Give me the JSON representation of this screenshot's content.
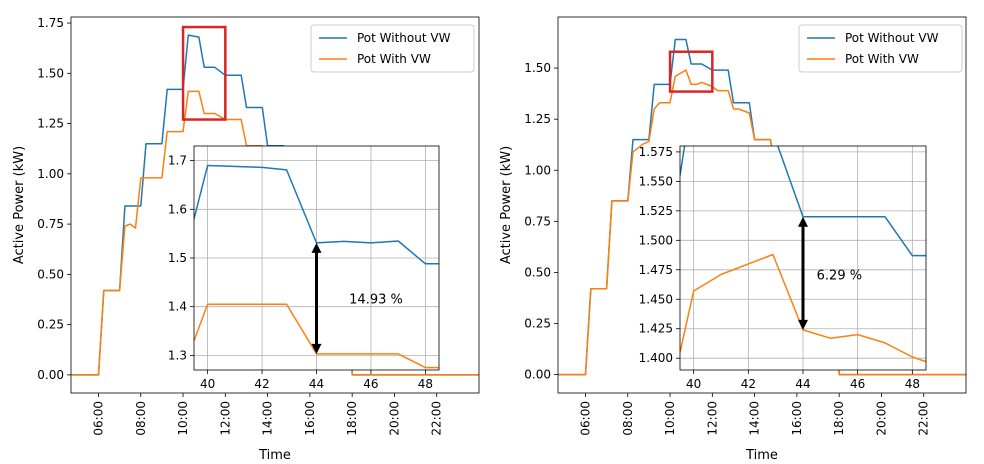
{
  "colors": {
    "without": "#1f77b4",
    "with": "#ff7f0e",
    "zoom_box": "#d62728",
    "arrow": "#000000",
    "grid": "#b0b0b0"
  },
  "chart_data": [
    {
      "type": "line",
      "xlabel": "Time",
      "ylabel": "Active Power (kW)",
      "x_ticks": [
        "06:00",
        "08:00",
        "10:00",
        "12:00",
        "14:00",
        "16:00",
        "18:00",
        "20:00",
        "22:00"
      ],
      "x_tick_hours": [
        6,
        8,
        10,
        12,
        14,
        16,
        18,
        20,
        22
      ],
      "xlim": [
        4.7,
        24.0
      ],
      "ylim": [
        -0.09,
        1.78
      ],
      "y_ticks": [
        "0.00",
        "0.25",
        "0.50",
        "0.75",
        "1.00",
        "1.25",
        "1.50",
        "1.75"
      ],
      "y_tick_values": [
        0,
        0.25,
        0.5,
        0.75,
        1.0,
        1.25,
        1.5,
        1.75
      ],
      "legend": {
        "placement": "top-right",
        "entries": [
          "Pot Without VW",
          "Pot With VW"
        ]
      },
      "series": [
        {
          "name": "Pot Without VW",
          "color": "#1f77b4",
          "x": [
            4.7,
            6.0,
            6.25,
            7.0,
            7.25,
            8.0,
            8.25,
            9.0,
            9.25,
            10.0,
            10.25,
            10.75,
            11.0,
            11.5,
            12.0,
            12.25,
            12.75,
            13.0,
            13.75,
            14.0,
            14.75,
            15.0,
            15.75,
            16.0,
            17.75,
            18.0,
            24.0
          ],
          "y": [
            0,
            0,
            0.42,
            0.42,
            0.84,
            0.84,
            1.15,
            1.15,
            1.42,
            1.42,
            1.69,
            1.68,
            1.53,
            1.53,
            1.49,
            1.49,
            1.49,
            1.33,
            1.33,
            1.14,
            1.14,
            0.98,
            0.98,
            0.7,
            0.7,
            0,
            0
          ]
        },
        {
          "name": "Pot With VW",
          "color": "#ff7f0e",
          "x": [
            4.7,
            6.0,
            6.25,
            7.0,
            7.25,
            7.5,
            7.75,
            8.0,
            8.25,
            9.0,
            9.25,
            10.0,
            10.25,
            10.75,
            11.0,
            11.5,
            12.0,
            12.25,
            12.75,
            13.0,
            13.75,
            14.0,
            14.75,
            15.0,
            15.75,
            16.0,
            17.75,
            18.0,
            24.0
          ],
          "y": [
            0,
            0,
            0.42,
            0.42,
            0.74,
            0.75,
            0.73,
            0.98,
            0.98,
            0.98,
            1.21,
            1.21,
            1.41,
            1.41,
            1.3,
            1.3,
            1.27,
            1.27,
            1.27,
            1.14,
            1.14,
            1.0,
            1.0,
            0.86,
            0.86,
            0.7,
            0.7,
            0,
            0
          ]
        }
      ],
      "zoom_region": {
        "x": [
          10.0,
          12.0
        ],
        "y": [
          1.27,
          1.73
        ]
      },
      "inset": {
        "xlim": [
          39.5,
          48.5
        ],
        "ylim": [
          1.27,
          1.73
        ],
        "x_ticks": [
          "40",
          "42",
          "44",
          "46",
          "48"
        ],
        "x_tick_values": [
          40,
          42,
          44,
          46,
          48
        ],
        "y_ticks": [
          "1.3",
          "1.4",
          "1.5",
          "1.6",
          "1.7"
        ],
        "y_tick_values": [
          1.3,
          1.4,
          1.5,
          1.6,
          1.7
        ],
        "grid": true,
        "series": [
          {
            "color": "#1f77b4",
            "x": [
              39.5,
              40.0,
              42.0,
              42.9,
              44.0,
              45.0,
              46.0,
              47.0,
              48.0,
              48.5
            ],
            "y": [
              1.58,
              1.69,
              1.686,
              1.681,
              1.531,
              1.534,
              1.531,
              1.535,
              1.488,
              1.488
            ]
          },
          {
            "color": "#ff7f0e",
            "x": [
              39.5,
              40.0,
              42.0,
              42.9,
              44.0,
              45.0,
              46.0,
              47.0,
              48.0,
              48.5
            ],
            "y": [
              1.33,
              1.405,
              1.405,
              1.405,
              1.303,
              1.303,
              1.303,
              1.303,
              1.275,
              1.275
            ]
          }
        ],
        "arrow": {
          "x": 44,
          "y_from": 1.303,
          "y_to": 1.531
        },
        "annotation": "14.93 %",
        "annotation_at": [
          45.2,
          1.415
        ]
      }
    },
    {
      "type": "line",
      "xlabel": "Time",
      "ylabel": "Active Power (kW)",
      "x_ticks": [
        "06:00",
        "08:00",
        "10:00",
        "12:00",
        "14:00",
        "16:00",
        "18:00",
        "20:00",
        "22:00"
      ],
      "x_tick_hours": [
        6,
        8,
        10,
        12,
        14,
        16,
        18,
        20,
        22
      ],
      "xlim": [
        4.7,
        24.0
      ],
      "ylim": [
        -0.09,
        1.75
      ],
      "y_ticks": [
        "0.00",
        "0.25",
        "0.50",
        "0.75",
        "1.00",
        "1.25",
        "1.50"
      ],
      "y_tick_values": [
        0,
        0.25,
        0.5,
        0.75,
        1.0,
        1.25,
        1.5
      ],
      "legend": {
        "placement": "top-right",
        "entries": [
          "Pot Without VW",
          "Pot With VW"
        ]
      },
      "series": [
        {
          "name": "Pot Without VW",
          "color": "#1f77b4",
          "x": [
            4.7,
            6.0,
            6.25,
            7.0,
            7.25,
            8.0,
            8.25,
            9.0,
            9.25,
            10.0,
            10.25,
            10.75,
            11.0,
            11.5,
            12.0,
            12.25,
            12.75,
            13.0,
            13.75,
            14.0,
            14.75,
            15.0,
            15.75,
            16.0,
            17.75,
            18.0,
            24.0
          ],
          "y": [
            0,
            0,
            0.42,
            0.42,
            0.85,
            0.85,
            1.15,
            1.15,
            1.42,
            1.42,
            1.64,
            1.64,
            1.52,
            1.52,
            1.49,
            1.49,
            1.49,
            1.33,
            1.33,
            1.15,
            1.15,
            0.98,
            0.98,
            0.7,
            0.7,
            0,
            0
          ]
        },
        {
          "name": "Pot With VW",
          "color": "#ff7f0e",
          "x": [
            4.7,
            6.0,
            6.25,
            7.0,
            7.25,
            8.0,
            8.25,
            8.75,
            9.0,
            9.25,
            9.5,
            10.0,
            10.25,
            10.75,
            11.0,
            11.25,
            11.5,
            12.0,
            12.25,
            12.75,
            13.0,
            13.25,
            13.75,
            14.0,
            14.75,
            15.0,
            15.75,
            16.0,
            17.75,
            18.0,
            24.0
          ],
          "y": [
            0,
            0,
            0.42,
            0.42,
            0.85,
            0.85,
            1.09,
            1.13,
            1.14,
            1.3,
            1.33,
            1.33,
            1.46,
            1.49,
            1.42,
            1.42,
            1.43,
            1.41,
            1.39,
            1.39,
            1.3,
            1.3,
            1.28,
            1.15,
            1.15,
            0.98,
            0.98,
            0.7,
            0.7,
            0,
            0
          ]
        }
      ],
      "zoom_region": {
        "x": [
          10.0,
          12.0
        ],
        "y": [
          1.385,
          1.58
        ]
      },
      "inset": {
        "xlim": [
          39.5,
          48.5
        ],
        "ylim": [
          1.39,
          1.58
        ],
        "x_ticks": [
          "40",
          "42",
          "44",
          "46",
          "48"
        ],
        "x_tick_values": [
          40,
          42,
          44,
          46,
          48
        ],
        "y_ticks": [
          "1.400",
          "1.425",
          "1.450",
          "1.475",
          "1.500",
          "1.525",
          "1.550",
          "1.575"
        ],
        "y_tick_values": [
          1.4,
          1.425,
          1.45,
          1.475,
          1.5,
          1.525,
          1.55,
          1.575
        ],
        "grid": true,
        "series": [
          {
            "color": "#1f77b4",
            "x": [
              39.5,
              39.7,
              40.0,
              43.0,
              44.0,
              46.0,
              47.0,
              48.0,
              48.5
            ],
            "y": [
              1.555,
              1.585,
              1.585,
              1.585,
              1.52,
              1.52,
              1.52,
              1.487,
              1.487
            ]
          },
          {
            "color": "#ff7f0e",
            "x": [
              39.5,
              40.0,
              41.0,
              42.0,
              42.9,
              44.0,
              45.0,
              46.0,
              47.0,
              48.0,
              48.5
            ],
            "y": [
              1.405,
              1.457,
              1.471,
              1.48,
              1.488,
              1.424,
              1.417,
              1.42,
              1.413,
              1.401,
              1.397
            ]
          }
        ],
        "arrow": {
          "x": 44,
          "y_from": 1.424,
          "y_to": 1.52
        },
        "annotation": "6.29 %",
        "annotation_at": [
          44.5,
          1.47
        ]
      }
    }
  ]
}
